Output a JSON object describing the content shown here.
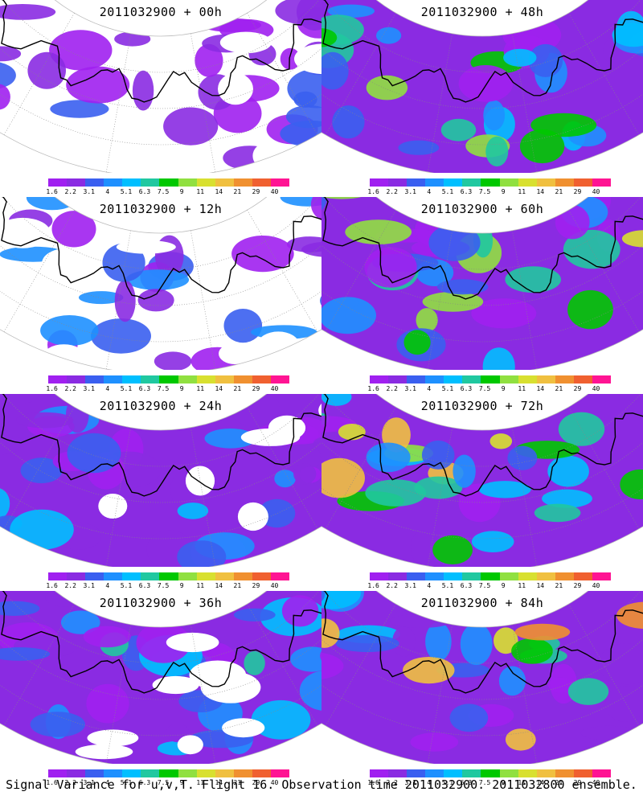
{
  "panels": [
    {
      "title": "2011032900 + 00h",
      "intensity": 0.05
    },
    {
      "title": "2011032900 + 48h",
      "intensity": 0.45
    },
    {
      "title": "2011032900 + 12h",
      "intensity": 0.15
    },
    {
      "title": "2011032900 + 60h",
      "intensity": 0.55
    },
    {
      "title": "2011032900 + 24h",
      "intensity": 0.22
    },
    {
      "title": "2011032900 + 72h",
      "intensity": 0.68
    },
    {
      "title": "2011032900 + 36h",
      "intensity": 0.3
    },
    {
      "title": "2011032900 + 84h",
      "intensity": 0.8
    }
  ],
  "colorbar": {
    "colors": [
      "#a020f0",
      "#8a2be2",
      "#3a5ff0",
      "#1e90ff",
      "#00bfff",
      "#20c8a0",
      "#00c800",
      "#90e040",
      "#d8e030",
      "#f0c040",
      "#f09030",
      "#f06030",
      "#ff1493"
    ],
    "labels": [
      "1.6",
      "2.2",
      "3.1",
      "4",
      "5.1",
      "6.3",
      "7.5",
      "9",
      "11",
      "14",
      "21",
      "29",
      "40"
    ]
  },
  "caption": "Signal Variance for u,v,T. Flight 16. Observation time 2011032900. 2011032800 ensemble."
}
